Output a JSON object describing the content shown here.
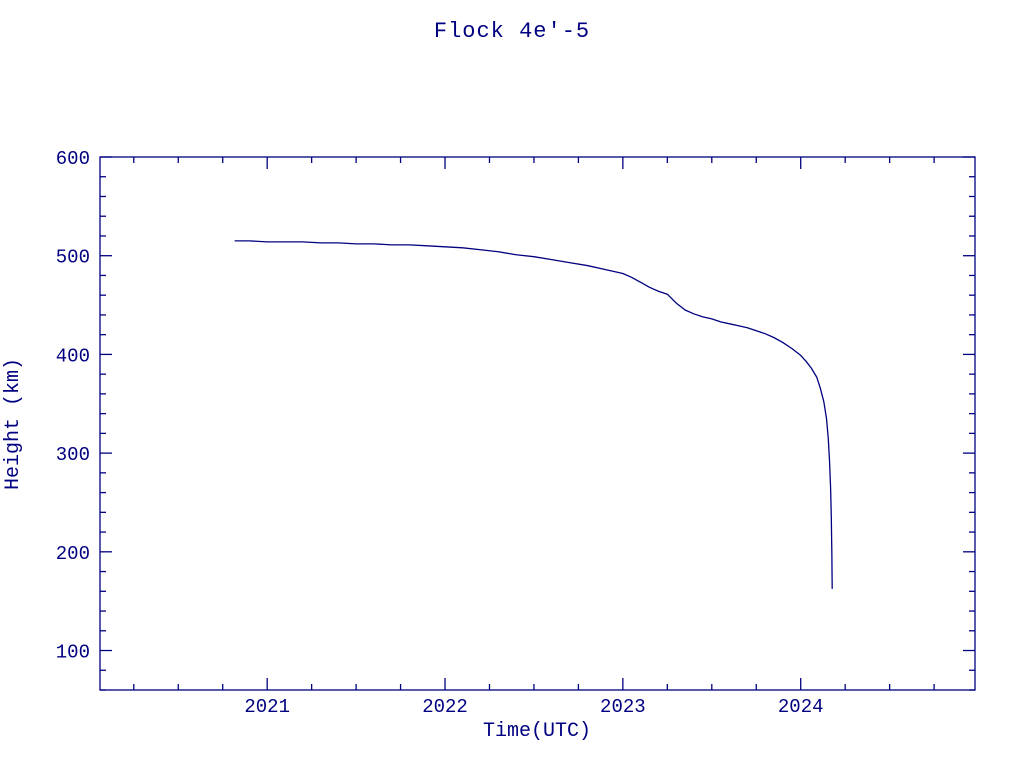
{
  "page": {
    "background": "#ffffff",
    "accent": "#000080"
  },
  "chart_data": {
    "type": "line",
    "title": "Flock 4e'-5",
    "xlabel": "Time(UTC)",
    "ylabel": "Height (km)",
    "xlim": [
      2020.06,
      2024.98
    ],
    "ylim": [
      60,
      600
    ],
    "xticks": [
      2021,
      2022,
      2023,
      2024
    ],
    "xtick_labels": [
      "2021",
      "2022",
      "2023",
      "2024"
    ],
    "x_minor_step": 0.25,
    "yticks": [
      100,
      200,
      300,
      400,
      500,
      600
    ],
    "ytick_labels": [
      "100",
      "200",
      "300",
      "400",
      "500",
      "600"
    ],
    "y_minor_step": 20,
    "grid": false,
    "legend": null,
    "line_color": "#000080",
    "series": [
      {
        "name": "Flock 4e'-5 height",
        "x": [
          2020.82,
          2020.9,
          2021.0,
          2021.1,
          2021.2,
          2021.3,
          2021.4,
          2021.5,
          2021.6,
          2021.7,
          2021.8,
          2021.9,
          2022.0,
          2022.1,
          2022.2,
          2022.3,
          2022.4,
          2022.5,
          2022.6,
          2022.7,
          2022.8,
          2022.9,
          2023.0,
          2023.05,
          2023.1,
          2023.15,
          2023.2,
          2023.25,
          2023.3,
          2023.35,
          2023.4,
          2023.45,
          2023.5,
          2023.55,
          2023.6,
          2023.65,
          2023.7,
          2023.75,
          2023.8,
          2023.85,
          2023.9,
          2023.95,
          2024.0,
          2024.03,
          2024.06,
          2024.09,
          2024.11,
          2024.13,
          2024.145,
          2024.155,
          2024.162,
          2024.168,
          2024.172,
          2024.175,
          2024.177
        ],
        "y": [
          515,
          515,
          514,
          514,
          514,
          513,
          513,
          512,
          512,
          511,
          511,
          510,
          509,
          508,
          506,
          504,
          501,
          499,
          496,
          493,
          490,
          486,
          482,
          478,
          473,
          468,
          464,
          461,
          452,
          445,
          441,
          438,
          436,
          433,
          431,
          429,
          427,
          424,
          421,
          417,
          412,
          406,
          399,
          393,
          386,
          377,
          366,
          352,
          335,
          315,
          292,
          265,
          235,
          200,
          163
        ]
      }
    ]
  }
}
